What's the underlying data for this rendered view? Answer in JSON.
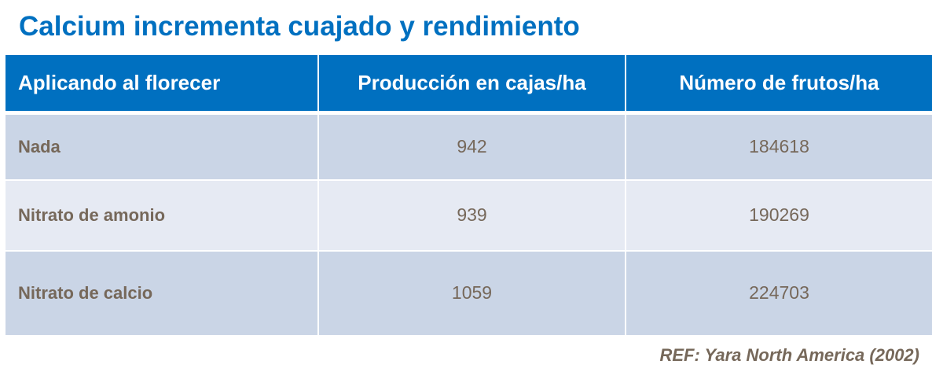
{
  "title": "Calcium incrementa cuajado y rendimiento",
  "table": {
    "headers": [
      "Aplicando al florecer",
      "Producción en cajas/ha",
      "Número de frutos/ha"
    ],
    "rows": [
      [
        "Nada",
        "942",
        "184618"
      ],
      [
        "Nitrato de amonio",
        "939",
        "190269"
      ],
      [
        "Nitrato de calcio",
        "1059",
        "224703"
      ]
    ]
  },
  "reference": "REF: Yara North America (2002)",
  "colors": {
    "header": "#0070c0",
    "row_dark": "#cad5e6",
    "row_light": "#e6eaf3",
    "text": "#76685a"
  }
}
